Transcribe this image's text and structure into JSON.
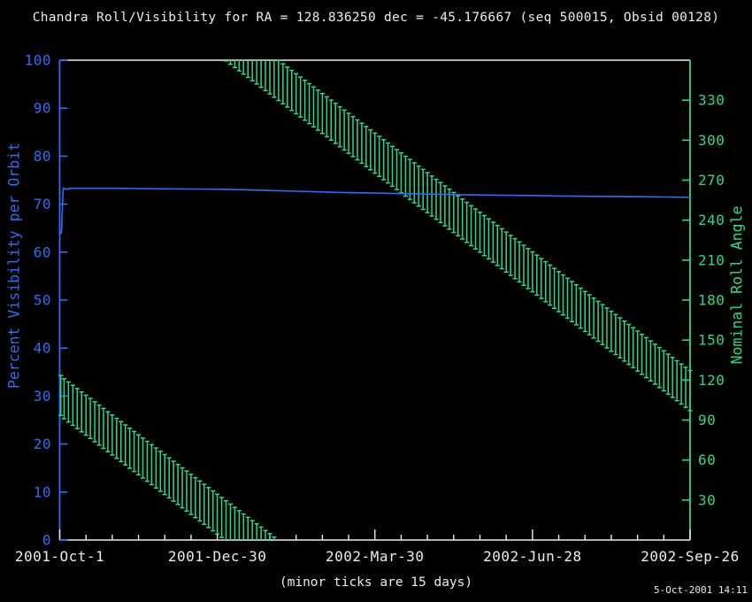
{
  "title": "Chandra Roll/Visibility for RA = 128.836250 dec = -45.176667 (seq 500015, Obsid 00128)",
  "footnote": "(minor ticks are 15 days)",
  "generated": "5-Oct-2001 14:11",
  "colors": {
    "background": "#000000",
    "visibility_blue": "#2c6ef2",
    "roll_green": "#2dd787",
    "frame_white": "#ececec",
    "text_white": "#ececec"
  },
  "chart_data": {
    "type": "line",
    "title": "Chandra Roll/Visibility for RA = 128.836250 dec = -45.176667 (seq 500015, Obsid 00128)",
    "x_axis": {
      "range_days": [
        0,
        360
      ],
      "major_tick_interval_days": 90,
      "minor_tick_interval_days": 15,
      "tick_labels": [
        "2001-Oct-1",
        "2001-Dec-30",
        "2002-Mar-30",
        "2002-Jun-28",
        "2002-Sep-26"
      ],
      "note": "(minor ticks are 15 days)"
    },
    "y_axis_left": {
      "label": "Percent Visibility per Orbit",
      "range": [
        0,
        100
      ],
      "tick_interval": 10,
      "tick_labels": [
        "0",
        "10",
        "20",
        "30",
        "40",
        "50",
        "60",
        "70",
        "80",
        "90",
        "100"
      ],
      "color": "#2c6ef2"
    },
    "y_axis_right": {
      "label": "Nominal Roll Angle",
      "range": [
        0,
        360
      ],
      "tick_interval": 30,
      "tick_labels": [
        "30",
        "60",
        "90",
        "120",
        "150",
        "180",
        "210",
        "240",
        "270",
        "300",
        "330"
      ],
      "color": "#2dd787"
    },
    "grid": false,
    "legend": "none",
    "series": [
      {
        "name": "Percent Visibility per Orbit",
        "type": "line",
        "color": "#2c6ef2",
        "points_day_pct": [
          [
            0,
            63.7
          ],
          [
            1,
            64.0
          ],
          [
            1.6,
            70.0
          ],
          [
            2,
            73.3
          ],
          [
            4,
            73.1
          ],
          [
            6,
            73.3
          ],
          [
            15,
            73.3
          ],
          [
            30,
            73.3
          ],
          [
            45,
            73.25
          ],
          [
            60,
            73.2
          ],
          [
            75,
            73.15
          ],
          [
            90,
            73.1
          ],
          [
            105,
            73.0
          ],
          [
            120,
            72.85
          ],
          [
            135,
            72.7
          ],
          [
            150,
            72.55
          ],
          [
            165,
            72.4
          ],
          [
            180,
            72.3
          ],
          [
            195,
            72.2
          ],
          [
            210,
            72.1
          ],
          [
            225,
            72.0
          ],
          [
            240,
            71.9
          ],
          [
            255,
            71.85
          ],
          [
            270,
            71.8
          ],
          [
            285,
            71.7
          ],
          [
            300,
            71.65
          ],
          [
            315,
            71.6
          ],
          [
            330,
            71.55
          ],
          [
            345,
            71.5
          ],
          [
            360,
            71.4
          ]
        ]
      },
      {
        "name": "Nominal Roll Angle",
        "type": "errorbar",
        "color": "#2dd787",
        "bar_interval_days": 2.5,
        "half_width_deg": 15,
        "center_at_day0_deg": 108.5,
        "slope_deg_per_day": -0.99,
        "wrap_deg": 360,
        "description": "Roll angle band ~108±15° at 2001-Oct-1 decreasing ~1°/day, wrapping 0→360 near mid-Jan 2002, ending ~112±15° at 2002-Sep-26"
      }
    ]
  }
}
